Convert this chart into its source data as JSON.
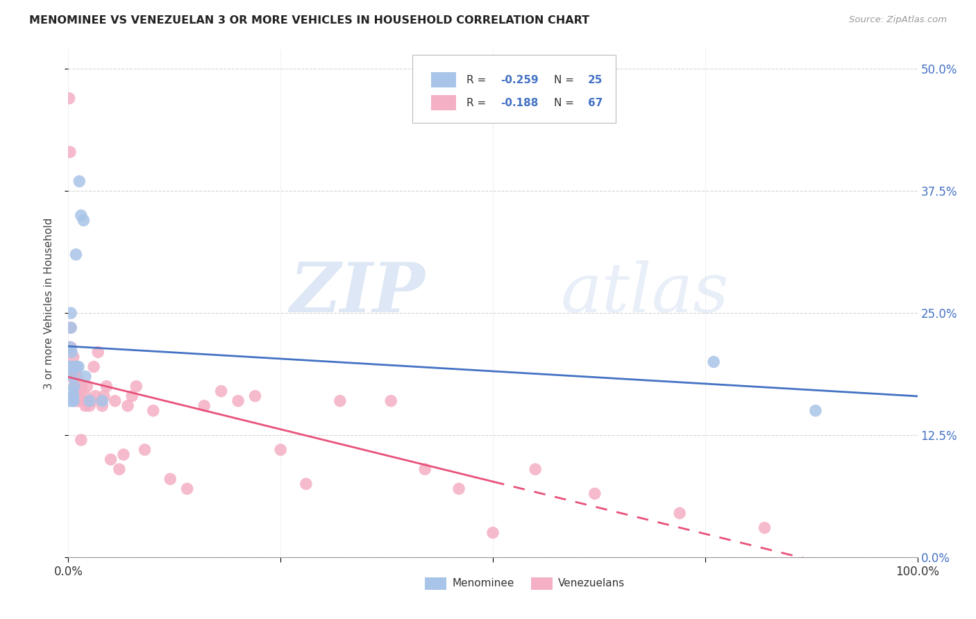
{
  "title": "MENOMINEE VS VENEZUELAN 3 OR MORE VEHICLES IN HOUSEHOLD CORRELATION CHART",
  "source": "Source: ZipAtlas.com",
  "ylabel": "3 or more Vehicles in Household",
  "xlim": [
    0.0,
    1.0
  ],
  "ylim": [
    0.0,
    0.52
  ],
  "xtick_vals": [
    0.0,
    0.25,
    0.5,
    0.75,
    1.0
  ],
  "xtick_labels": [
    "0.0%",
    "",
    "",
    "",
    "100.0%"
  ],
  "ytick_vals": [
    0.0,
    0.125,
    0.25,
    0.375,
    0.5
  ],
  "ytick_labels": [
    "0.0%",
    "12.5%",
    "25.0%",
    "37.5%",
    "50.0%"
  ],
  "menominee_x": [
    0.001,
    0.001,
    0.002,
    0.003,
    0.003,
    0.004,
    0.004,
    0.005,
    0.005,
    0.005,
    0.006,
    0.006,
    0.007,
    0.008,
    0.009,
    0.01,
    0.012,
    0.013,
    0.015,
    0.018,
    0.02,
    0.025,
    0.04,
    0.76,
    0.88
  ],
  "menominee_y": [
    0.16,
    0.195,
    0.215,
    0.235,
    0.25,
    0.195,
    0.21,
    0.16,
    0.17,
    0.185,
    0.16,
    0.165,
    0.175,
    0.195,
    0.31,
    0.195,
    0.195,
    0.385,
    0.35,
    0.345,
    0.185,
    0.16,
    0.16,
    0.2,
    0.15
  ],
  "venezuelan_x": [
    0.001,
    0.002,
    0.003,
    0.003,
    0.004,
    0.004,
    0.005,
    0.005,
    0.005,
    0.006,
    0.006,
    0.006,
    0.007,
    0.007,
    0.007,
    0.008,
    0.008,
    0.008,
    0.009,
    0.009,
    0.01,
    0.01,
    0.01,
    0.012,
    0.013,
    0.013,
    0.014,
    0.015,
    0.016,
    0.018,
    0.02,
    0.02,
    0.022,
    0.025,
    0.028,
    0.03,
    0.032,
    0.035,
    0.04,
    0.042,
    0.045,
    0.05,
    0.055,
    0.06,
    0.065,
    0.07,
    0.075,
    0.08,
    0.09,
    0.1,
    0.12,
    0.14,
    0.16,
    0.18,
    0.2,
    0.22,
    0.25,
    0.28,
    0.32,
    0.38,
    0.42,
    0.46,
    0.5,
    0.55,
    0.62,
    0.72,
    0.82
  ],
  "venezuelan_y": [
    0.47,
    0.415,
    0.215,
    0.235,
    0.185,
    0.195,
    0.185,
    0.19,
    0.195,
    0.185,
    0.195,
    0.205,
    0.175,
    0.185,
    0.195,
    0.165,
    0.175,
    0.19,
    0.16,
    0.165,
    0.17,
    0.175,
    0.185,
    0.16,
    0.165,
    0.17,
    0.175,
    0.12,
    0.175,
    0.16,
    0.155,
    0.165,
    0.175,
    0.155,
    0.16,
    0.195,
    0.165,
    0.21,
    0.155,
    0.165,
    0.175,
    0.1,
    0.16,
    0.09,
    0.105,
    0.155,
    0.165,
    0.175,
    0.11,
    0.15,
    0.08,
    0.07,
    0.155,
    0.17,
    0.16,
    0.165,
    0.11,
    0.075,
    0.16,
    0.16,
    0.09,
    0.07,
    0.025,
    0.09,
    0.065,
    0.045,
    0.03
  ],
  "menominee_color": "#a8c4e8",
  "venezuelan_color": "#f4b0c4",
  "menominee_line_color": "#4472c4",
  "venezuelan_line_color": "#e8527a",
  "R_menominee": -0.259,
  "N_menominee": 25,
  "R_venezuelan": -0.188,
  "N_venezuelan": 67,
  "watermark_zip": "ZIP",
  "watermark_atlas": "atlas",
  "background_color": "#ffffff",
  "grid_color": "#cccccc",
  "legend_bottom_labels": [
    "Menominee",
    "Venezuelans"
  ]
}
